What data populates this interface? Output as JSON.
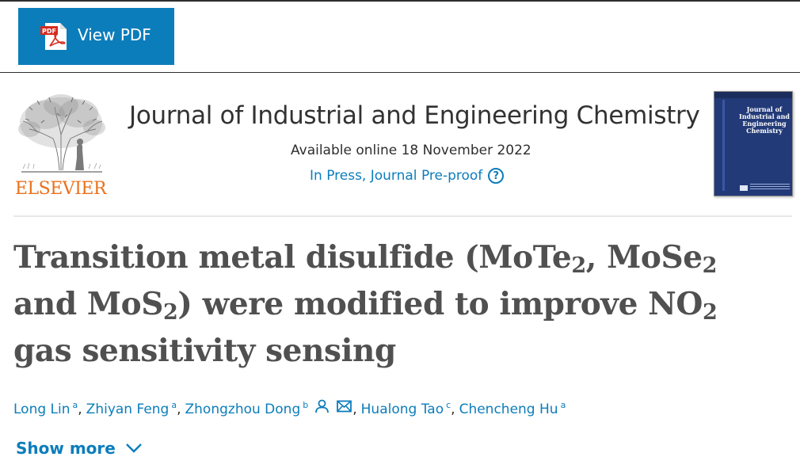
{
  "toolbar": {
    "view_pdf_label": "View PDF",
    "pdf_icon_text": "PDF"
  },
  "publisher": {
    "name": "ELSEVIER",
    "logo_color": "#e9711c"
  },
  "journal": {
    "title": "Journal of Industrial and Engineering Chemistry",
    "available_online": "Available online 18 November 2022",
    "status": "In Press, Journal Pre-proof",
    "help_glyph": "?",
    "cover_title": "Journal of Industrial and Engineering Chemistry"
  },
  "article": {
    "title_parts": {
      "p1": "Transition metal disulfide (MoTe",
      "s1": "2",
      "p2": ", MoSe",
      "s2": "2",
      "p3": " and MoS",
      "s3": "2",
      "p4": ") were modified to improve NO",
      "s4": "2",
      "p5": " gas sensitivity sensing"
    }
  },
  "authors": [
    {
      "name": "Long Lin",
      "affiliation": "a"
    },
    {
      "name": "Zhiyan Feng",
      "affiliation": "a"
    },
    {
      "name": "Zhongzhou Dong",
      "affiliation": "b",
      "icons": [
        "person-icon",
        "envelope-icon"
      ]
    },
    {
      "name": "Hualong Tao",
      "affiliation": "c"
    },
    {
      "name": "Chencheng Hu",
      "affiliation": "a"
    }
  ],
  "author_separator": ",",
  "show_more": {
    "label": "Show more",
    "icon": "chevron-down-icon"
  },
  "colors": {
    "accent": "#0c7dbb",
    "text": "#2e2e2e",
    "title_text": "#505050"
  }
}
